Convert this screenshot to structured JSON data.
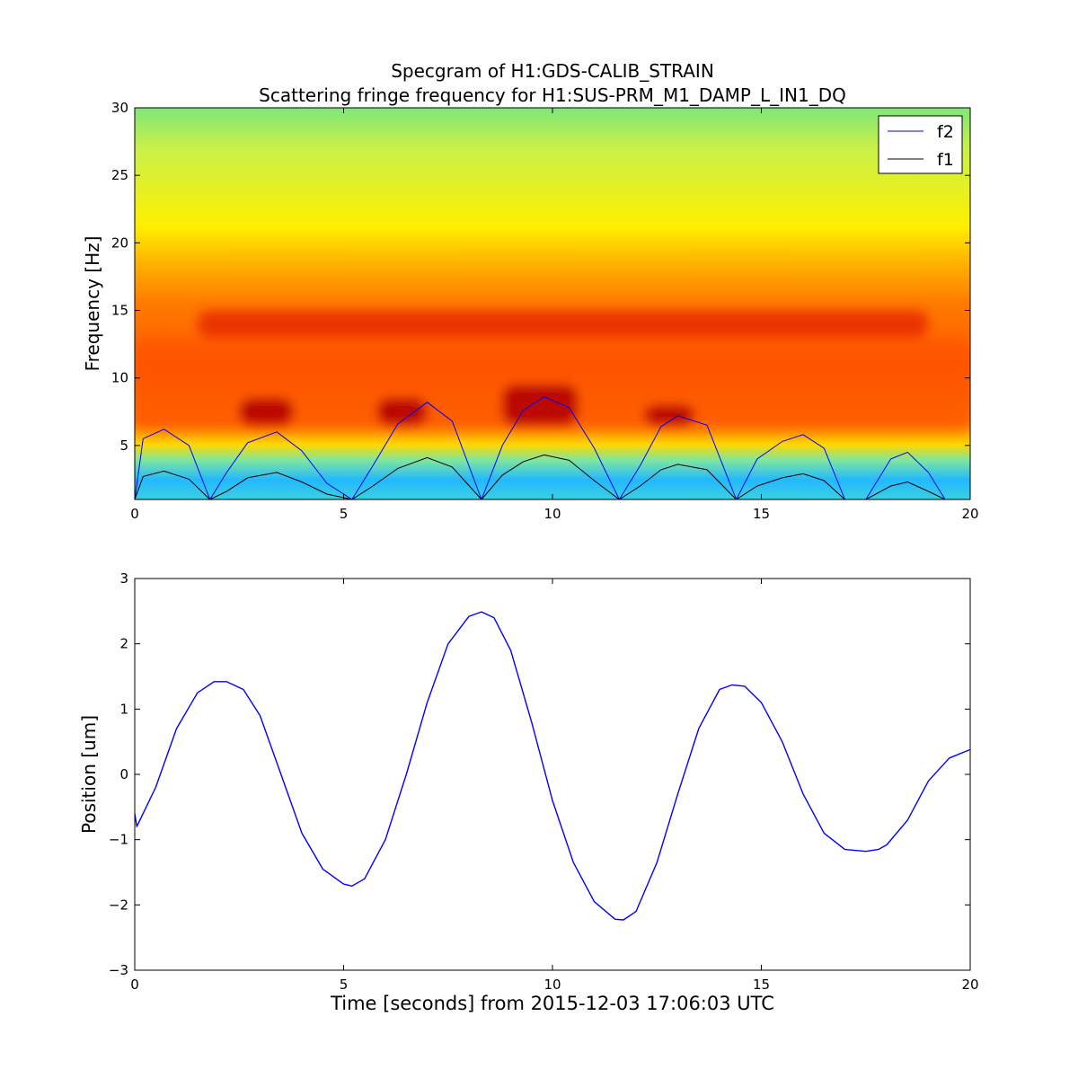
{
  "chart_data": [
    {
      "type": "heatmap",
      "title": "Specgram of H1:GDS-CALIB_STRAIN",
      "subtitle": "Scattering fringe frequency for H1:SUS-PRM_M1_DAMP_L_IN1_DQ",
      "xlabel": "",
      "ylabel": "Frequency [Hz]",
      "xlim": [
        0,
        20
      ],
      "ylim": [
        1,
        30
      ],
      "x_ticks": [
        "0",
        "5",
        "10",
        "15",
        "20"
      ],
      "y_ticks": [
        "5",
        "10",
        "15",
        "20",
        "25",
        "30"
      ],
      "colormap": "jet",
      "colors": {
        "f2": "#0000ff",
        "f1": "#000000"
      },
      "heatmap_features": [
        {
          "t": [
            1.5,
            19
          ],
          "f": [
            13,
            15
          ],
          "level": "high"
        },
        {
          "t": [
            0,
            20
          ],
          "f": [
            6,
            13
          ],
          "level": "medium-high"
        },
        {
          "t": [
            2.5,
            3.8
          ],
          "f": [
            6.5,
            8.5
          ],
          "level": "peak"
        },
        {
          "t": [
            5.8,
            7.0
          ],
          "f": [
            6.5,
            8.5
          ],
          "level": "peak"
        },
        {
          "t": [
            8.8,
            10.6
          ],
          "f": [
            6.5,
            9.5
          ],
          "level": "peak"
        },
        {
          "t": [
            12.2,
            13.4
          ],
          "f": [
            6.5,
            8.0
          ],
          "level": "peak"
        }
      ],
      "legend_position": "top-right",
      "series": [
        {
          "name": "f2",
          "x": [
            0,
            0.2,
            0.7,
            1.3,
            1.8,
            2.2,
            2.7,
            3.4,
            4.0,
            4.6,
            5.2,
            5.7,
            6.3,
            7.0,
            7.6,
            8.3,
            8.8,
            9.3,
            9.8,
            10.4,
            11.0,
            11.6,
            12.1,
            12.6,
            13.0,
            13.7,
            14.4,
            14.9,
            15.5,
            16.0,
            16.5,
            17.0,
            17.5,
            18.1,
            18.5,
            19.0,
            19.4
          ],
          "y": [
            1,
            5.5,
            6.2,
            5.0,
            1.0,
            3.0,
            5.2,
            6.0,
            4.6,
            2.2,
            1.0,
            3.5,
            6.6,
            8.2,
            6.8,
            1.0,
            5.0,
            7.6,
            8.6,
            7.8,
            4.8,
            1.0,
            3.5,
            6.4,
            7.2,
            6.5,
            1.0,
            4.0,
            5.3,
            5.8,
            4.8,
            1.0,
            1.0,
            4.0,
            4.5,
            3.0,
            1.0
          ]
        },
        {
          "name": "f1",
          "x": [
            0,
            0.2,
            0.7,
            1.3,
            1.8,
            2.2,
            2.7,
            3.4,
            4.0,
            4.6,
            5.2,
            5.7,
            6.3,
            7.0,
            7.6,
            8.3,
            8.8,
            9.3,
            9.8,
            10.4,
            11.0,
            11.6,
            12.1,
            12.6,
            13.0,
            13.7,
            14.4,
            14.9,
            15.5,
            16.0,
            16.5,
            17.0,
            17.5,
            18.1,
            18.5,
            19.0,
            19.4
          ],
          "y": [
            1,
            2.7,
            3.1,
            2.5,
            1.0,
            1.6,
            2.6,
            3.0,
            2.3,
            1.4,
            1.0,
            2.0,
            3.3,
            4.1,
            3.4,
            1.0,
            2.8,
            3.8,
            4.3,
            3.9,
            2.4,
            1.0,
            2.0,
            3.2,
            3.6,
            3.2,
            1.0,
            2.0,
            2.6,
            2.9,
            2.4,
            1.0,
            1.0,
            2.0,
            2.3,
            1.6,
            1.0
          ]
        }
      ]
    },
    {
      "type": "line",
      "title": "",
      "xlabel": "Time [seconds] from 2015-12-03 17:06:03 UTC",
      "ylabel": "Position [um]",
      "xlim": [
        0,
        20
      ],
      "ylim": [
        -3,
        3
      ],
      "x_ticks": [
        "0",
        "5",
        "10",
        "15",
        "20"
      ],
      "y_ticks": [
        "−3",
        "−2",
        "−1",
        "0",
        "1",
        "2",
        "3"
      ],
      "colors": {
        "line": "#0000ff"
      },
      "series": [
        {
          "x": [
            0,
            0.05,
            0.5,
            1.0,
            1.5,
            1.9,
            2.2,
            2.6,
            3.0,
            3.5,
            4.0,
            4.5,
            5.0,
            5.2,
            5.5,
            6.0,
            6.5,
            7.0,
            7.5,
            8.0,
            8.3,
            8.6,
            9.0,
            9.5,
            10.0,
            10.5,
            11.0,
            11.5,
            11.7,
            12.0,
            12.5,
            13.0,
            13.5,
            14.0,
            14.3,
            14.6,
            15.0,
            15.5,
            16.0,
            16.5,
            17.0,
            17.5,
            17.8,
            18.0,
            18.5,
            19.0,
            19.5,
            20.0
          ],
          "y": [
            -0.6,
            -0.8,
            -0.2,
            0.7,
            1.25,
            1.42,
            1.42,
            1.3,
            0.9,
            0.0,
            -0.9,
            -1.45,
            -1.68,
            -1.71,
            -1.6,
            -1.0,
            0.0,
            1.1,
            2.0,
            2.42,
            2.49,
            2.4,
            1.9,
            0.8,
            -0.4,
            -1.35,
            -1.95,
            -2.22,
            -2.23,
            -2.1,
            -1.35,
            -0.3,
            0.7,
            1.3,
            1.37,
            1.35,
            1.1,
            0.5,
            -0.3,
            -0.9,
            -1.15,
            -1.18,
            -1.15,
            -1.08,
            -0.7,
            -0.1,
            0.25,
            0.38
          ]
        }
      ]
    }
  ]
}
